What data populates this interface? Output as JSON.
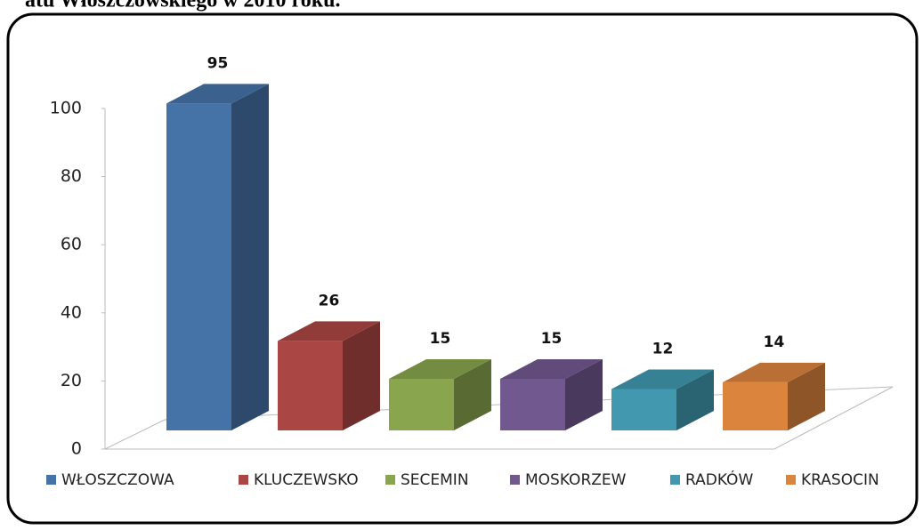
{
  "chart_data": {
    "type": "bar3d",
    "title": "atu Włoszczowskiego w 2010 roku.",
    "categories": [
      "WŁOSZCZOWA",
      "KLUCZEWSKO",
      "SECEMIN",
      "MOSKORZEW",
      "RADKÓW",
      "KRASOCIN"
    ],
    "values": [
      95,
      26,
      15,
      15,
      12,
      14
    ],
    "colors": [
      "#4572a7",
      "#aa4643",
      "#89a54e",
      "#71588f",
      "#4198af",
      "#db843d"
    ],
    "ylim": [
      0,
      100
    ],
    "yticks": [
      0,
      20,
      40,
      60,
      80,
      100
    ],
    "legend": "bottom"
  }
}
